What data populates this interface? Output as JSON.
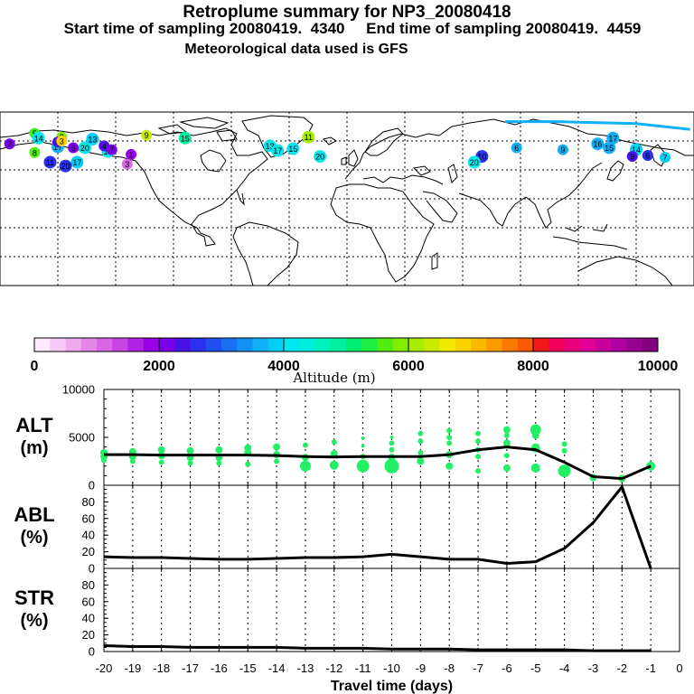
{
  "header": {
    "title": "Retroplume summary for NP3_20080418",
    "sampling_line": "Start time of sampling 20080419.  4340     End time of sampling 20080419.  4459",
    "met_line": "Meteorological data used is GFS"
  },
  "colors": {
    "green_marker": "#22ee66",
    "line": "#000000"
  },
  "colorbar": {
    "labels": [
      "0",
      "2000",
      "4000",
      "6000",
      "8000",
      "10000"
    ],
    "title": "Altitude (m)",
    "swatches": [
      "#fde8fd",
      "#f6ccf6",
      "#eeaaee",
      "#e488e8",
      "#d866e6",
      "#c844e4",
      "#b022e4",
      "#9a00e8",
      "#7a00ea",
      "#4a10e8",
      "#2a30ee",
      "#2050f0",
      "#1a70f2",
      "#1290f4",
      "#10b0f6",
      "#00d0f6",
      "#00e8ee",
      "#00eedd",
      "#00f0c0",
      "#00f0a0",
      "#00ee70",
      "#20ee40",
      "#50ee10",
      "#80ee00",
      "#a8ec00",
      "#ccea00",
      "#f0ea00",
      "#fad200",
      "#fab800",
      "#fa9a00",
      "#fa7a00",
      "#fa5a00",
      "#f01818",
      "#f0005a",
      "#e8007a",
      "#e00096",
      "#c8009c",
      "#b000a0",
      "#980090",
      "#800080"
    ]
  },
  "map_labels": [
    {
      "t": "5",
      "lon": -162,
      "lat": 68,
      "c": "#40ee20"
    },
    {
      "t": "14",
      "lon": -160,
      "lat": 63,
      "c": "#00e8ee"
    },
    {
      "t": "8",
      "lon": -148,
      "lat": 64,
      "c": "#80ee00"
    },
    {
      "t": "13",
      "lon": -132,
      "lat": 62,
      "c": "#00d0f6"
    },
    {
      "t": "9",
      "lon": -104,
      "lat": 66,
      "c": "#c8ea00"
    },
    {
      "t": "17",
      "lon": -150,
      "lat": 54,
      "c": "#10b0f6"
    },
    {
      "t": "20",
      "lon": -136,
      "lat": 53,
      "c": "#00e8ee"
    },
    {
      "t": "18",
      "lon": -124,
      "lat": 49,
      "c": "#00e8ee"
    },
    {
      "t": "2",
      "lon": -175,
      "lat": 57,
      "c": "#7a00ea"
    },
    {
      "t": "4",
      "lon": -150,
      "lat": 59,
      "c": "#4a10e8"
    },
    {
      "t": "11",
      "lon": -20,
      "lat": 64,
      "c": "#a8ec00"
    },
    {
      "t": "15",
      "lon": -84,
      "lat": 63,
      "c": "#00f0a0"
    },
    {
      "t": "13",
      "lon": -40,
      "lat": 55,
      "c": "#00e8ee"
    },
    {
      "t": "15",
      "lon": -28,
      "lat": 52,
      "c": "#00e8ee"
    },
    {
      "t": "17",
      "lon": -36,
      "lat": 50,
      "c": "#00e8ee"
    },
    {
      "t": "20",
      "lon": -14,
      "lat": 44,
      "c": "#00e8ee"
    },
    {
      "t": "6",
      "lon": 88,
      "lat": 53,
      "c": "#10b0f6"
    },
    {
      "t": "9",
      "lon": 112,
      "lat": 51,
      "c": "#10b0f6"
    },
    {
      "t": "16",
      "lon": 130,
      "lat": 57,
      "c": "#10b0f6"
    },
    {
      "t": "15",
      "lon": 136,
      "lat": 53,
      "c": "#10b0f6"
    },
    {
      "t": "17",
      "lon": 138,
      "lat": 63,
      "c": "#10b0f6"
    },
    {
      "t": "14",
      "lon": 150,
      "lat": 51,
      "c": "#00d0f6"
    },
    {
      "t": "6",
      "lon": 156,
      "lat": 45,
      "c": "#2a30ee"
    },
    {
      "t": "7",
      "lon": 165,
      "lat": 43,
      "c": "#00d0f6"
    },
    {
      "t": "9",
      "lon": 148,
      "lat": 44,
      "c": "#4a10e8"
    },
    {
      "t": "10",
      "lon": 70,
      "lat": 44,
      "c": "#2a30ee"
    },
    {
      "t": "20",
      "lon": 66,
      "lat": 38,
      "c": "#00e8ee"
    },
    {
      "t": "8",
      "lon": 198,
      "lat": 48,
      "c": "#50ee10"
    },
    {
      "t": "3",
      "lon": 212,
      "lat": 60,
      "c": "#fad200"
    },
    {
      "t": "6",
      "lon": 218,
      "lat": 53,
      "c": "#7a00ea"
    },
    {
      "t": "11",
      "lon": 206,
      "lat": 38,
      "c": "#2a30ee"
    },
    {
      "t": "17",
      "lon": 220,
      "lat": 38,
      "c": "#00d0f6"
    },
    {
      "t": "20",
      "lon": 214,
      "lat": 34,
      "c": "#2a30ee"
    },
    {
      "t": "4",
      "lon": 234,
      "lat": 55,
      "c": "#4a10e8"
    },
    {
      "t": "7",
      "lon": 238,
      "lat": 51,
      "c": "#7a00ea"
    },
    {
      "t": "1",
      "lon": 248,
      "lat": 46,
      "c": "#9a00e8"
    },
    {
      "t": "3",
      "lon": 246,
      "lat": 36,
      "c": "#d866e6"
    }
  ],
  "chart_data": [
    {
      "type": "scatter",
      "panel_label_line1": "ALT",
      "panel_label_line2": "(m)",
      "ylim": [
        0,
        10000
      ],
      "yticks": [
        "0",
        "5000",
        "10000"
      ],
      "xlim": [
        -20,
        0
      ],
      "mean_line": {
        "x": [
          -20,
          -19,
          -18,
          -17,
          -16,
          -15,
          -14,
          -13,
          -12,
          -11,
          -10,
          -9,
          -8,
          -7,
          -6,
          -5,
          -4,
          -3,
          -2,
          -1
        ],
        "y": [
          3200,
          3200,
          3150,
          3150,
          3150,
          3150,
          3100,
          3000,
          2950,
          3000,
          3000,
          3000,
          3200,
          3700,
          4000,
          3700,
          2400,
          900,
          700,
          2000
        ]
      },
      "points": [
        [
          -20,
          3400,
          4
        ],
        [
          -20,
          3000,
          4
        ],
        [
          -20,
          2600,
          3
        ],
        [
          -19,
          3500,
          4
        ],
        [
          -19,
          3000,
          4
        ],
        [
          -19,
          2500,
          3
        ],
        [
          -18,
          3700,
          4
        ],
        [
          -18,
          3100,
          4
        ],
        [
          -18,
          2400,
          3
        ],
        [
          -17,
          3600,
          4
        ],
        [
          -17,
          2900,
          4
        ],
        [
          -17,
          2300,
          3
        ],
        [
          -16,
          3700,
          4
        ],
        [
          -16,
          2900,
          4
        ],
        [
          -16,
          2300,
          3
        ],
        [
          -15,
          3900,
          4
        ],
        [
          -15,
          3400,
          4
        ],
        [
          -15,
          2200,
          3
        ],
        [
          -14,
          4000,
          4
        ],
        [
          -14,
          3200,
          4
        ],
        [
          -14,
          2500,
          3
        ],
        [
          -13,
          4200,
          3
        ],
        [
          -13,
          2900,
          4
        ],
        [
          -13,
          2000,
          6
        ],
        [
          -12,
          4500,
          3
        ],
        [
          -12,
          3300,
          4
        ],
        [
          -12,
          2100,
          5
        ],
        [
          -11,
          4900,
          2
        ],
        [
          -11,
          4100,
          2
        ],
        [
          -11,
          3000,
          3
        ],
        [
          -11,
          2000,
          7
        ],
        [
          -10,
          5000,
          2
        ],
        [
          -10,
          4400,
          3
        ],
        [
          -10,
          3700,
          3
        ],
        [
          -10,
          2900,
          4
        ],
        [
          -10,
          2000,
          8
        ],
        [
          -9,
          5400,
          3
        ],
        [
          -9,
          4600,
          3
        ],
        [
          -9,
          3400,
          3
        ],
        [
          -9,
          2500,
          4
        ],
        [
          -8,
          5700,
          3
        ],
        [
          -8,
          5000,
          3
        ],
        [
          -8,
          4400,
          3
        ],
        [
          -8,
          3200,
          4
        ],
        [
          -8,
          2000,
          4
        ],
        [
          -7,
          5400,
          3
        ],
        [
          -7,
          4600,
          3
        ],
        [
          -7,
          3700,
          3
        ],
        [
          -7,
          3000,
          3
        ],
        [
          -7,
          1500,
          3
        ],
        [
          -6,
          5800,
          4
        ],
        [
          -6,
          5200,
          3
        ],
        [
          -6,
          4400,
          4
        ],
        [
          -6,
          3100,
          3
        ],
        [
          -6,
          1800,
          4
        ],
        [
          -5,
          5800,
          6
        ],
        [
          -5,
          5200,
          4
        ],
        [
          -5,
          3900,
          5
        ],
        [
          -5,
          1800,
          5
        ],
        [
          -4,
          4300,
          3
        ],
        [
          -4,
          3600,
          3
        ],
        [
          -4,
          1500,
          7
        ],
        [
          -3,
          800,
          4
        ],
        [
          -2,
          700,
          4
        ],
        [
          -1,
          2000,
          5
        ]
      ]
    },
    {
      "type": "line",
      "panel_label_line1": "ABL",
      "panel_label_line2": "(%)",
      "ylim": [
        0,
        100
      ],
      "yticks": [
        "0",
        "20",
        "40",
        "60",
        "80"
      ],
      "x": [
        -20,
        -19,
        -18,
        -17,
        -16,
        -15,
        -14,
        -13,
        -12,
        -11,
        -10,
        -9,
        -8,
        -7,
        -6,
        -5,
        -4,
        -3,
        -2,
        -1
      ],
      "y": [
        14,
        13,
        13,
        12,
        11,
        11,
        12,
        13,
        13,
        14,
        17,
        14,
        11,
        11,
        6,
        8,
        24,
        55,
        98,
        0
      ]
    },
    {
      "type": "line",
      "panel_label_line1": "STR",
      "panel_label_line2": "(%)",
      "ylim": [
        0,
        100
      ],
      "yticks": [
        "0",
        "20",
        "40",
        "60",
        "80"
      ],
      "xlabel": "Travel time (days)",
      "xticks": [
        "-20",
        "-19",
        "-18",
        "-17",
        "-16",
        "-15",
        "-14",
        "-13",
        "-12",
        "-11",
        "-10",
        "-9",
        "-8",
        "-7",
        "-6",
        "-5",
        "-4",
        "-3",
        "-2",
        "-1",
        "0"
      ],
      "x": [
        -20,
        -19,
        -18,
        -17,
        -16,
        -15,
        -14,
        -13,
        -12,
        -11,
        -10,
        -9,
        -8,
        -7,
        -6,
        -5,
        -4,
        -3,
        -2,
        -1
      ],
      "y": [
        7,
        6,
        6,
        5,
        5,
        5,
        5,
        4,
        4,
        4,
        3,
        3,
        3,
        2,
        2,
        2,
        2,
        1,
        1,
        1
      ]
    }
  ]
}
